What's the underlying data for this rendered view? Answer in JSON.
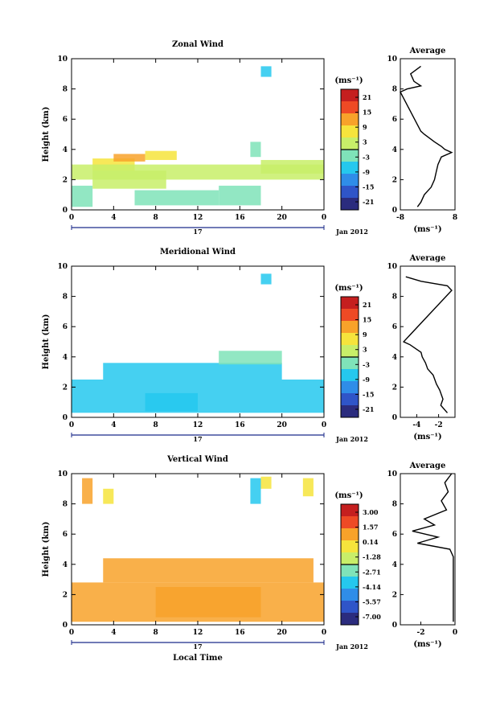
{
  "panels": [
    {
      "title": "Zonal Wind",
      "ylabel": "Height (km)",
      "ylim": [
        0,
        10
      ],
      "yticks": [
        "0",
        "2",
        "4",
        "6",
        "8",
        "10"
      ],
      "xticks": [
        "0",
        "4",
        "8",
        "12",
        "16",
        "20",
        "0"
      ],
      "date_day": "17",
      "date_label": "Jan 2012",
      "colorbar_unit": "(ms⁻¹)",
      "colorbar_ticks": [
        "21",
        "15",
        "9",
        "3",
        "-3",
        "-9",
        "-15",
        "-21"
      ],
      "avg_title": "Average",
      "avg_xticks": [
        "-8",
        "8"
      ],
      "avg_unit": "(ms⁻¹)"
    },
    {
      "title": "Meridional Wind",
      "ylabel": "Height (km)",
      "ylim": [
        0,
        10
      ],
      "yticks": [
        "0",
        "2",
        "4",
        "6",
        "8",
        "10"
      ],
      "xticks": [
        "0",
        "4",
        "8",
        "12",
        "16",
        "20",
        "0"
      ],
      "date_day": "17",
      "date_label": "Jan 2012",
      "colorbar_unit": "(ms⁻¹)",
      "colorbar_ticks": [
        "21",
        "15",
        "9",
        "3",
        "-3",
        "-9",
        "-15",
        "-21"
      ],
      "avg_title": "Average",
      "avg_xticks": [
        "-4",
        "-2"
      ],
      "avg_unit": "(ms⁻¹)"
    },
    {
      "title": "Vertical Wind",
      "ylabel": "Height (km)",
      "ylim": [
        0,
        10
      ],
      "yticks": [
        "0",
        "2",
        "4",
        "6",
        "8",
        "10"
      ],
      "xticks": [
        "0",
        "4",
        "8",
        "12",
        "16",
        "20",
        "0"
      ],
      "date_day": "17",
      "date_label": "Jan 2012",
      "xlabel": "Local Time",
      "colorbar_unit": "(ms⁻¹)",
      "colorbar_ticks": [
        "3.00",
        "1.57",
        "0.14",
        "-1.28",
        "-2.71",
        "-4.14",
        "-5.57",
        "-7.00"
      ],
      "avg_title": "Average",
      "avg_xticks": [
        "-2",
        "0"
      ],
      "avg_unit": "(ms⁻¹)"
    }
  ],
  "colors": {
    "colormap": [
      "#2b2c7e",
      "#2f55c8",
      "#2f8de8",
      "#25c8ee",
      "#7fe3b9",
      "#c8ee69",
      "#f6e43c",
      "#f8a22a",
      "#ee4a25",
      "#c51f1f"
    ]
  },
  "chart_data": [
    {
      "type": "heatmap",
      "title": "Zonal Wind",
      "xlabel": "",
      "ylabel": "Height (km)",
      "xlim": [
        0,
        24
      ],
      "ylim": [
        0,
        10
      ],
      "color_scale": [
        -21,
        21
      ],
      "regions": [
        {
          "x": [
            0,
            2
          ],
          "y": [
            0.2,
            1.6
          ],
          "value": -3
        },
        {
          "x": [
            2,
            9
          ],
          "y": [
            1.4,
            2.6
          ],
          "value": 1
        },
        {
          "x": [
            2,
            6
          ],
          "y": [
            2.6,
            3.4
          ],
          "value": 5
        },
        {
          "x": [
            4,
            7
          ],
          "y": [
            3.2,
            3.7
          ],
          "value": 11
        },
        {
          "x": [
            7,
            10
          ],
          "y": [
            3.3,
            3.9
          ],
          "value": 7
        },
        {
          "x": [
            0,
            24
          ],
          "y": [
            2.0,
            3.0
          ],
          "value": 2
        },
        {
          "x": [
            6,
            14
          ],
          "y": [
            0.3,
            1.3
          ],
          "value": -3
        },
        {
          "x": [
            14,
            18
          ],
          "y": [
            0.3,
            1.6
          ],
          "value": -1
        },
        {
          "x": [
            17,
            18
          ],
          "y": [
            3.5,
            4.5
          ],
          "value": -2
        },
        {
          "x": [
            18,
            24
          ],
          "y": [
            2.4,
            3.3
          ],
          "value": 2
        },
        {
          "x": [
            18,
            19
          ],
          "y": [
            8.8,
            9.5
          ],
          "value": -5
        }
      ],
      "average_profile": {
        "xlim": [
          -8,
          8
        ],
        "height": [
          0.2,
          0.5,
          1.0,
          1.5,
          2.0,
          2.5,
          3.0,
          3.5,
          3.8,
          4.0,
          4.2,
          4.5,
          5.0,
          5.2,
          7.8,
          8.0,
          8.2,
          8.5,
          9.0,
          9.5
        ],
        "value": [
          -3,
          -2,
          -1,
          1,
          2,
          2.5,
          3,
          4,
          7,
          5,
          4,
          2,
          -1,
          -2,
          -8,
          -6,
          -2,
          -4,
          -5,
          -2
        ]
      }
    },
    {
      "type": "heatmap",
      "title": "Meridional Wind",
      "xlabel": "",
      "ylabel": "Height (km)",
      "xlim": [
        0,
        24
      ],
      "ylim": [
        0,
        10
      ],
      "color_scale": [
        -21,
        21
      ],
      "regions": [
        {
          "x": [
            0,
            24
          ],
          "y": [
            0.3,
            2.5
          ],
          "value": -6
        },
        {
          "x": [
            3,
            20
          ],
          "y": [
            2.5,
            3.6
          ],
          "value": -5
        },
        {
          "x": [
            14,
            20
          ],
          "y": [
            3.5,
            4.4
          ],
          "value": -4
        },
        {
          "x": [
            7,
            12
          ],
          "y": [
            0.4,
            1.6
          ],
          "value": -7
        },
        {
          "x": [
            18,
            19
          ],
          "y": [
            8.8,
            9.5
          ],
          "value": -6
        }
      ],
      "average_profile": {
        "xlim": [
          -5.5,
          -0.5
        ],
        "height": [
          0.3,
          0.8,
          1.2,
          1.8,
          2.2,
          2.8,
          3.2,
          3.6,
          4.0,
          4.3,
          4.8,
          5.0,
          8.4,
          8.7,
          9.0,
          9.3
        ],
        "value": [
          -1.2,
          -1.8,
          -1.6,
          -1.9,
          -2.2,
          -2.5,
          -3.0,
          -3.2,
          -3.5,
          -3.6,
          -4.6,
          -5.2,
          -0.8,
          -1.2,
          -3.6,
          -5.0
        ]
      }
    },
    {
      "type": "heatmap",
      "title": "Vertical Wind",
      "xlabel": "Local Time",
      "ylabel": "Height (km)",
      "xlim": [
        0,
        24
      ],
      "ylim": [
        0,
        10
      ],
      "color_scale": [
        -7.0,
        3.0
      ],
      "regions": [
        {
          "x": [
            0,
            24
          ],
          "y": [
            0.2,
            2.8
          ],
          "value": 0.2
        },
        {
          "x": [
            8,
            18
          ],
          "y": [
            0.5,
            2.5
          ],
          "value": 0.5
        },
        {
          "x": [
            3,
            23
          ],
          "y": [
            2.8,
            4.4
          ],
          "value": 0.0
        },
        {
          "x": [
            1,
            2
          ],
          "y": [
            8.0,
            9.7
          ],
          "value": 0.1
        },
        {
          "x": [
            3,
            4
          ],
          "y": [
            8.0,
            9.0
          ],
          "value": -0.8
        },
        {
          "x": [
            17,
            18
          ],
          "y": [
            8.0,
            9.7
          ],
          "value": -4.0
        },
        {
          "x": [
            18,
            19
          ],
          "y": [
            9.0,
            9.8
          ],
          "value": -0.5
        },
        {
          "x": [
            22,
            23
          ],
          "y": [
            8.5,
            9.7
          ],
          "value": -0.4
        }
      ],
      "average_profile": {
        "xlim": [
          -3.2,
          0
        ],
        "height": [
          0.2,
          1.5,
          3.0,
          4.5,
          5.0,
          5.4,
          5.8,
          6.2,
          6.6,
          7.0,
          7.6,
          8.2,
          8.8,
          9.4,
          10.0
        ],
        "value": [
          -0.1,
          -0.1,
          -0.1,
          -0.1,
          -0.3,
          -2.2,
          -1.0,
          -2.5,
          -1.2,
          -1.8,
          -0.5,
          -0.8,
          -0.4,
          -0.6,
          -0.2
        ]
      }
    }
  ]
}
